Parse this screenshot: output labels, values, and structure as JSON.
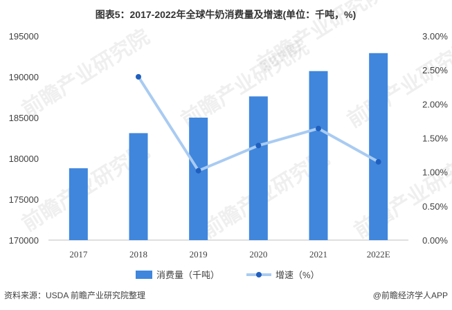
{
  "chart_data": {
    "type": "bar",
    "title": "图表5：2017-2022年全球牛奶消费量及增速(单位：千吨，%)",
    "categories": [
      "2017",
      "2018",
      "2019",
      "2020",
      "2021",
      "2022E"
    ],
    "series": [
      {
        "name": "消费量（千吨）",
        "type": "bar",
        "axis": "left",
        "values": [
          178800,
          183100,
          185000,
          187600,
          190700,
          192900
        ]
      },
      {
        "name": "增速（%）",
        "type": "line",
        "axis": "right",
        "values": [
          null,
          2.4,
          1.02,
          1.39,
          1.64,
          1.15
        ]
      }
    ],
    "y_left": {
      "ylim": [
        170000,
        195000
      ],
      "ticks": [
        "170000",
        "175000",
        "180000",
        "185000",
        "190000",
        "195000"
      ]
    },
    "y_right": {
      "ylim": [
        0,
        3
      ],
      "ticks": [
        "0.00%",
        "0.50%",
        "1.00%",
        "1.50%",
        "2.00%",
        "2.50%",
        "3.00%"
      ]
    },
    "grid": false,
    "legend": "bottom",
    "colors": {
      "bar": "#3f86dc",
      "line": "#a9cbf2",
      "marker": "#1f5fbf",
      "axis": "#bfbfbf",
      "text": "#404040"
    }
  },
  "source": "资料来源：USDA 前瞻产业研究院整理",
  "brand": "@前瞻经济学人APP",
  "watermark": "前瞻产业研究院"
}
